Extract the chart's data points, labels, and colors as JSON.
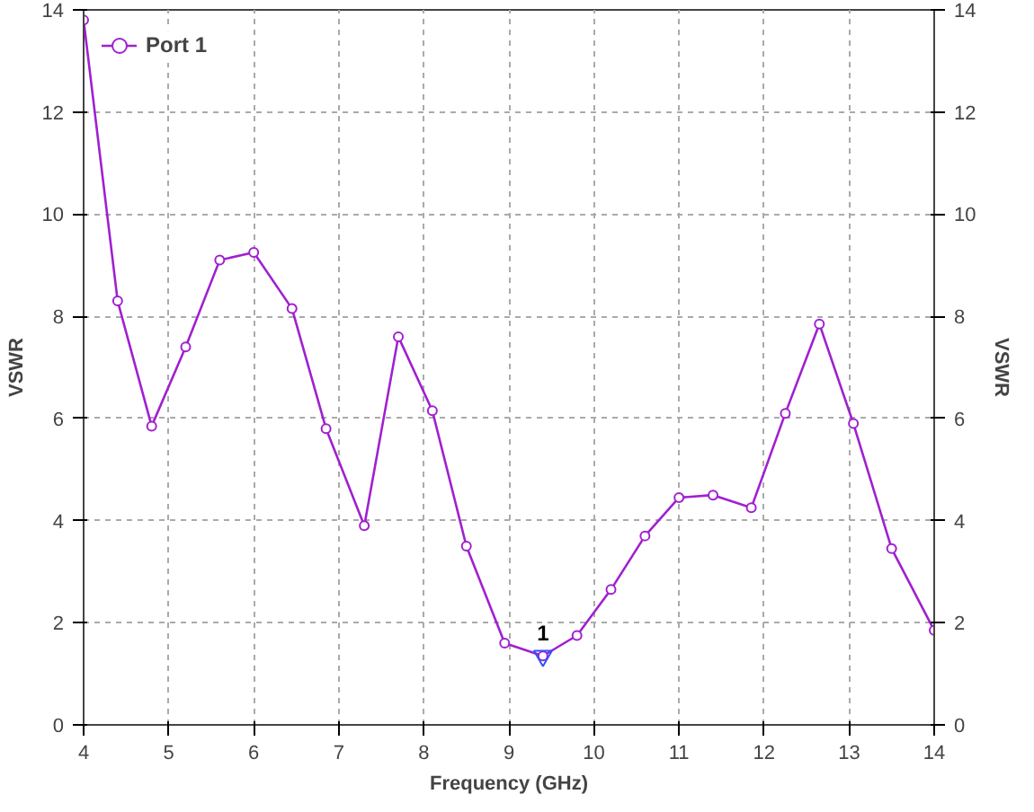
{
  "chart_data": {
    "type": "line",
    "xlabel": "Frequency (GHz)",
    "ylabel": "VSWR",
    "y2label": "VSWR",
    "x": [
      4.0,
      4.4,
      4.8,
      5.2,
      5.6,
      6.0,
      6.45,
      6.85,
      7.3,
      7.7,
      8.1,
      8.5,
      8.95,
      9.4,
      9.8,
      10.2,
      10.6,
      11.0,
      11.4,
      11.85,
      12.25,
      12.65,
      13.05,
      13.5,
      14.0
    ],
    "series": [
      {
        "name": "Port 1",
        "color": "#a020d0",
        "values": [
          13.8,
          8.3,
          5.85,
          7.4,
          9.1,
          9.25,
          8.15,
          5.8,
          3.9,
          7.6,
          6.15,
          3.5,
          1.6,
          1.35,
          1.75,
          2.65,
          3.7,
          4.45,
          4.5,
          4.25,
          6.1,
          7.85,
          5.9,
          3.45,
          1.85
        ]
      }
    ],
    "xlim": [
      4,
      14
    ],
    "xticks": [
      4,
      5,
      6,
      7,
      8,
      9,
      10,
      11,
      12,
      13,
      14
    ],
    "ylim": [
      0,
      14
    ],
    "yticks": [
      0,
      2,
      4,
      6,
      8,
      10,
      12,
      14
    ],
    "y2lim": [
      0,
      14
    ],
    "y2ticks": [
      0,
      2,
      4,
      6,
      8,
      10,
      12,
      14
    ],
    "annotations": [
      {
        "text": "1",
        "x": 9.4,
        "y": 1.35
      }
    ],
    "grid": true,
    "legend": "top left",
    "marker": "circle",
    "line_style": "solid"
  }
}
